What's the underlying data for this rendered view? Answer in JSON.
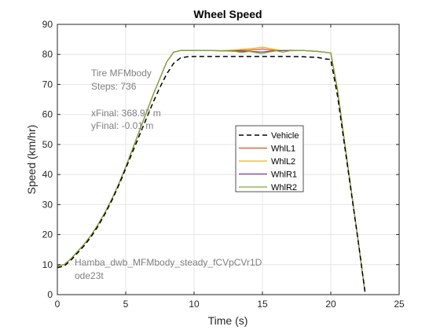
{
  "chart_data": {
    "type": "line",
    "title": "Wheel Speed",
    "xlabel": "Time (s)",
    "ylabel": "Speed (km/hr)",
    "xlim": [
      0,
      25
    ],
    "ylim": [
      0,
      90
    ],
    "xticks": [
      0,
      5,
      10,
      15,
      20,
      25
    ],
    "yticks": [
      0,
      10,
      20,
      30,
      40,
      50,
      60,
      70,
      80,
      90
    ],
    "grid": true,
    "legend_position": "center-right",
    "annotations": {
      "model_name": "Tire MFMbody",
      "steps": "Steps: 736",
      "x_final": "xFinal: 368.97 m",
      "y_final": "yFinal: -0.01 m",
      "test_name": "Hamba_dwb_MFMbody_steady_fCVpCVr1D",
      "solver": "ode23t"
    },
    "series": [
      {
        "name": "Vehicle",
        "color": "#000000",
        "style": "dashed",
        "x": [
          0,
          0.5,
          1,
          1.5,
          2,
          2.5,
          3,
          3.5,
          4,
          4.5,
          5,
          5.5,
          6,
          6.5,
          7,
          7.5,
          8,
          8.5,
          9,
          9.5,
          10,
          11,
          12,
          13,
          14,
          15,
          16,
          17,
          18,
          19,
          19.6,
          20,
          20.5,
          21,
          21.5,
          22,
          22.5
        ],
        "y": [
          9,
          9.5,
          11.5,
          14,
          16.5,
          19.5,
          23,
          27,
          31.5,
          36.5,
          42,
          47.5,
          53,
          58.5,
          64,
          69,
          73.5,
          77,
          78.8,
          79.2,
          79.3,
          79.3,
          79.3,
          79.3,
          79.3,
          79.3,
          79.3,
          79.3,
          79.2,
          79,
          78.5,
          78.3,
          66,
          50,
          34,
          18,
          1
        ]
      },
      {
        "name": "WhlL1",
        "color": "#d95319",
        "style": "solid",
        "x": [
          0,
          0.5,
          1,
          1.5,
          2,
          2.5,
          3,
          3.5,
          4,
          4.5,
          5,
          5.5,
          6,
          6.5,
          7,
          7.5,
          8,
          8.5,
          9,
          10,
          11,
          12,
          13,
          14,
          14.5,
          15,
          15.5,
          16,
          16.5,
          17,
          18,
          19,
          20,
          20.5,
          21,
          21.5,
          22,
          22.5
        ],
        "y": [
          9.5,
          10,
          12,
          14.5,
          17,
          20,
          23.5,
          27.5,
          32,
          37,
          42.5,
          48.5,
          54.5,
          60.5,
          66.5,
          72,
          77.5,
          80.7,
          81.3,
          81.3,
          81.3,
          81.2,
          81.3,
          81.4,
          81.6,
          81.8,
          81.5,
          81.3,
          81.3,
          81.3,
          81.3,
          81,
          80.5,
          68,
          51,
          34.5,
          18,
          1
        ]
      },
      {
        "name": "WhlL2",
        "color": "#edb120",
        "style": "solid",
        "x": [
          0,
          0.5,
          1,
          1.5,
          2,
          2.5,
          3,
          3.5,
          4,
          4.5,
          5,
          5.5,
          6,
          6.5,
          7,
          7.5,
          8,
          8.5,
          9,
          10,
          11,
          12,
          13,
          14,
          14.5,
          15,
          15.5,
          16,
          16.5,
          17,
          18,
          19,
          20,
          20.5,
          21,
          21.5,
          22,
          22.5
        ],
        "y": [
          9.5,
          10,
          12,
          14.5,
          17,
          20,
          23.5,
          27.5,
          32,
          37,
          42.5,
          48.5,
          54.5,
          60.5,
          66.5,
          72,
          77.5,
          80.7,
          81.3,
          81.3,
          81.3,
          81.3,
          81.5,
          81.9,
          82.1,
          82.4,
          82,
          81.6,
          81.2,
          81.4,
          81.3,
          81,
          80.5,
          68,
          51,
          34.5,
          18,
          1
        ]
      },
      {
        "name": "WhlR1",
        "color": "#7e2f8e",
        "style": "solid",
        "x": [
          0,
          0.5,
          1,
          1.5,
          2,
          2.5,
          3,
          3.5,
          4,
          4.5,
          5,
          5.5,
          6,
          6.5,
          7,
          7.5,
          8,
          8.5,
          9,
          10,
          11,
          12,
          13,
          14,
          14.5,
          15,
          15.5,
          16,
          16.5,
          17,
          18,
          19,
          20,
          20.5,
          21,
          21.5,
          22,
          22.5
        ],
        "y": [
          9.5,
          10,
          12,
          14.5,
          17,
          20,
          23.5,
          27.5,
          32,
          37,
          42.5,
          48.5,
          54.5,
          60.5,
          66.5,
          72,
          77.5,
          80.7,
          81.3,
          81.3,
          81.3,
          81.2,
          81.1,
          81,
          80.9,
          80.8,
          81,
          81.2,
          81.3,
          81.3,
          81.3,
          81,
          80.5,
          68,
          51,
          34.5,
          18,
          1
        ]
      },
      {
        "name": "WhlR2",
        "color": "#77ac30",
        "style": "solid",
        "x": [
          0,
          0.5,
          1,
          1.5,
          2,
          2.5,
          3,
          3.5,
          4,
          4.5,
          5,
          5.5,
          6,
          6.5,
          7,
          7.5,
          8,
          8.5,
          9,
          10,
          11,
          12,
          13,
          13.5,
          14,
          14.5,
          15,
          15.5,
          16,
          16.5,
          17,
          18,
          19,
          20,
          20.5,
          21,
          21.5,
          22,
          22.5
        ],
        "y": [
          9.5,
          10,
          12,
          14.5,
          17,
          20,
          23.5,
          27.5,
          32,
          37,
          42.5,
          48.5,
          54.5,
          60.5,
          66.5,
          72,
          77.5,
          80.7,
          81.3,
          81.3,
          81.3,
          81.2,
          81,
          80.6,
          81,
          80.6,
          80.3,
          80.8,
          81.2,
          80.7,
          81.2,
          81.3,
          81,
          80.5,
          68,
          51,
          34.5,
          18,
          1
        ]
      }
    ]
  }
}
